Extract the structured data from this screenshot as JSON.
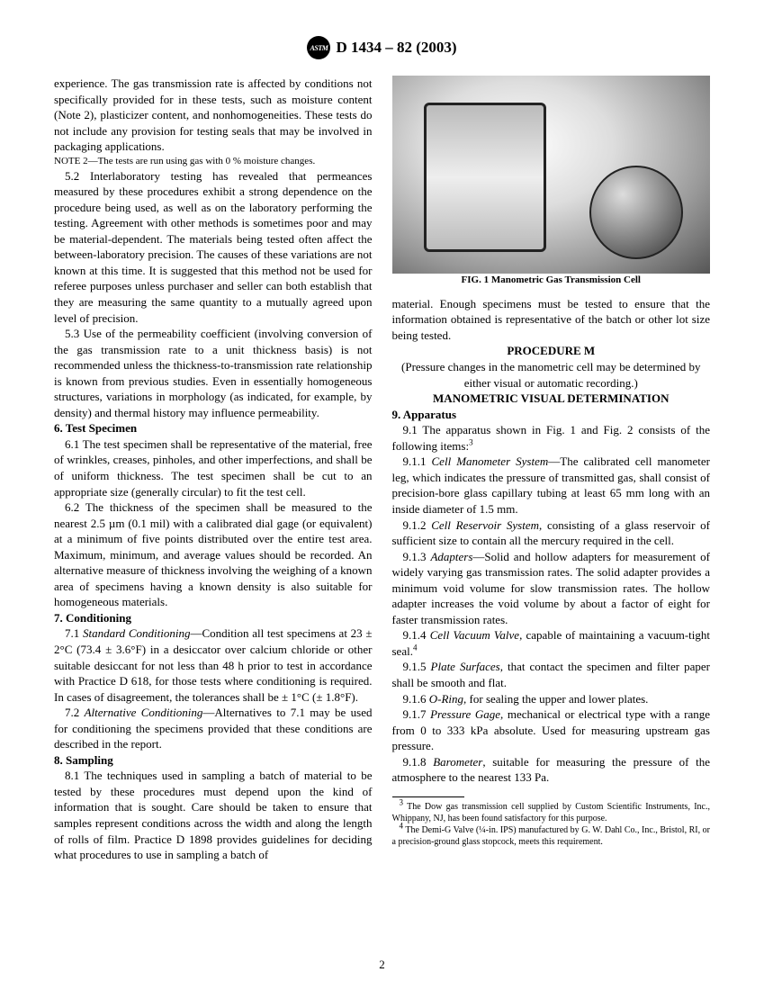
{
  "header": {
    "logo_text": "ASTM",
    "designation": "D 1434 – 82 (2003)"
  },
  "col1": {
    "p_experience": "experience. The gas transmission rate is affected by conditions not specifically provided for in these tests, such as moisture content (Note 2), plasticizer content, and nonhomogeneities. These tests do not include any provision for testing seals that may be involved in packaging applications.",
    "note2_label": "NOTE 2—",
    "note2_text": "The tests are run using gas with 0 % moisture changes.",
    "p52": "5.2 Interlaboratory testing has revealed that permeances measured by these procedures exhibit a strong dependence on the procedure being used, as well as on the laboratory performing the testing. Agreement with other methods is sometimes poor and may be material-dependent. The materials being tested often affect the between-laboratory precision. The causes of these variations are not known at this time. It is suggested that this method not be used for referee purposes unless purchaser and seller can both establish that they are measuring the same quantity to a mutually agreed upon level of precision.",
    "p53": "5.3 Use of the permeability coefficient (involving conversion of the gas transmission rate to a unit thickness basis) is not recommended unless the thickness-to-transmission rate relationship is known from previous studies. Even in essentially homogeneous structures, variations in morphology (as indicated, for example, by density) and thermal history may influence permeability.",
    "s6": "6. Test Specimen",
    "p61": "6.1 The test specimen shall be representative of the material, free of wrinkles, creases, pinholes, and other imperfections, and shall be of uniform thickness. The test specimen shall be cut to an appropriate size (generally circular) to fit the test cell.",
    "p62": "6.2 The thickness of the specimen shall be measured to the nearest 2.5 µm (0.1 mil) with a calibrated dial gage (or equivalent) at a minimum of five points distributed over the entire test area. Maximum, minimum, and average values should be recorded. An alternative measure of thickness involving the weighing of a known area of specimens having a known density is also suitable for homogeneous materials.",
    "s7": "7. Conditioning",
    "p71a": "7.1 ",
    "p71term": "Standard Conditioning",
    "p71b": "—Condition all test specimens at 23 ± 2°C (73.4 ± 3.6°F) in a desiccator over calcium chloride or other suitable desiccant for not less than 48 h prior to test in accordance with Practice D 618, for those tests where conditioning is required. In cases of disagreement, the tolerances shall be ± 1°C (± 1.8°F).",
    "p72a": "7.2 ",
    "p72term": "Alternative Conditioning",
    "p72b": "—Alternatives to 7.1 may be used for conditioning the specimens provided that these conditions are described in the report.",
    "s8": "8. Sampling",
    "p81": "8.1 The techniques used in sampling a batch of material to be tested by these procedures must depend upon the kind of information that is sought. Care should be taken to ensure that samples represent conditions across the width and along the length of rolls of film. Practice D 1898 provides guidelines for deciding what procedures to use in sampling a batch of"
  },
  "col2": {
    "fig_caption": "FIG. 1 Manometric Gas Transmission Cell",
    "p_material": "material. Enough specimens must be tested to ensure that the information obtained is representative of the batch or other lot size being tested.",
    "proc_m": "PROCEDURE  M",
    "proc_sub": "(Pressure changes in the manometric cell may be determined by either visual or automatic recording.)",
    "proc_head2": "MANOMETRIC VISUAL DETERMINATION",
    "s9": "9. Apparatus",
    "p91a": "9.1 The apparatus shown in Fig. 1 and Fig. 2 consists of the following items:",
    "sup3": "3",
    "p911a": "9.1.1 ",
    "p911term": "Cell Manometer System",
    "p911b": "—The calibrated cell manometer leg, which indicates the pressure of transmitted gas, shall consist of precision-bore glass capillary tubing at least 65 mm long with an inside diameter of 1.5 mm.",
    "p912a": "9.1.2 ",
    "p912term": "Cell Reservoir System",
    "p912b": ", consisting of a glass reservoir of sufficient size to contain all the mercury required in the cell.",
    "p913a": "9.1.3 ",
    "p913term": "Adapters",
    "p913b": "—Solid and hollow adapters for measurement of widely varying gas transmission rates. The solid adapter provides a minimum void volume for slow transmission rates. The hollow adapter increases the void volume by about a factor of eight for faster transmission rates.",
    "p914a": "9.1.4 ",
    "p914term": "Cell Vacuum Valve",
    "p914b": ", capable of maintaining a vacuum-tight seal.",
    "sup4": "4",
    "p915a": "9.1.5 ",
    "p915term": "Plate Surfaces",
    "p915b": ", that contact the specimen and filter paper shall be smooth and flat.",
    "p916a": "9.1.6 ",
    "p916term": "O-Ring",
    "p916b": ", for sealing the upper and lower plates.",
    "p917a": "9.1.7 ",
    "p917term": "Pressure Gage",
    "p917b": ", mechanical or electrical type with a range from 0 to 333 kPa absolute. Used for measuring upstream gas pressure.",
    "p918a": "9.1.8 ",
    "p918term": "Barometer",
    "p918b": ", suitable for measuring the pressure of the atmosphere to the nearest 133 Pa.",
    "fn3_sup": "3",
    "fn3": " The Dow gas transmission cell supplied by Custom Scientific Instruments, Inc., Whippany, NJ, has been found satisfactory for this purpose.",
    "fn4_sup": "4",
    "fn4": " The Demi-G Valve (¼-in. IPS) manufactured by G. W. Dahl Co., Inc., Bristol, RI, or a precision-ground glass stopcock, meets this requirement."
  },
  "page_number": "2"
}
